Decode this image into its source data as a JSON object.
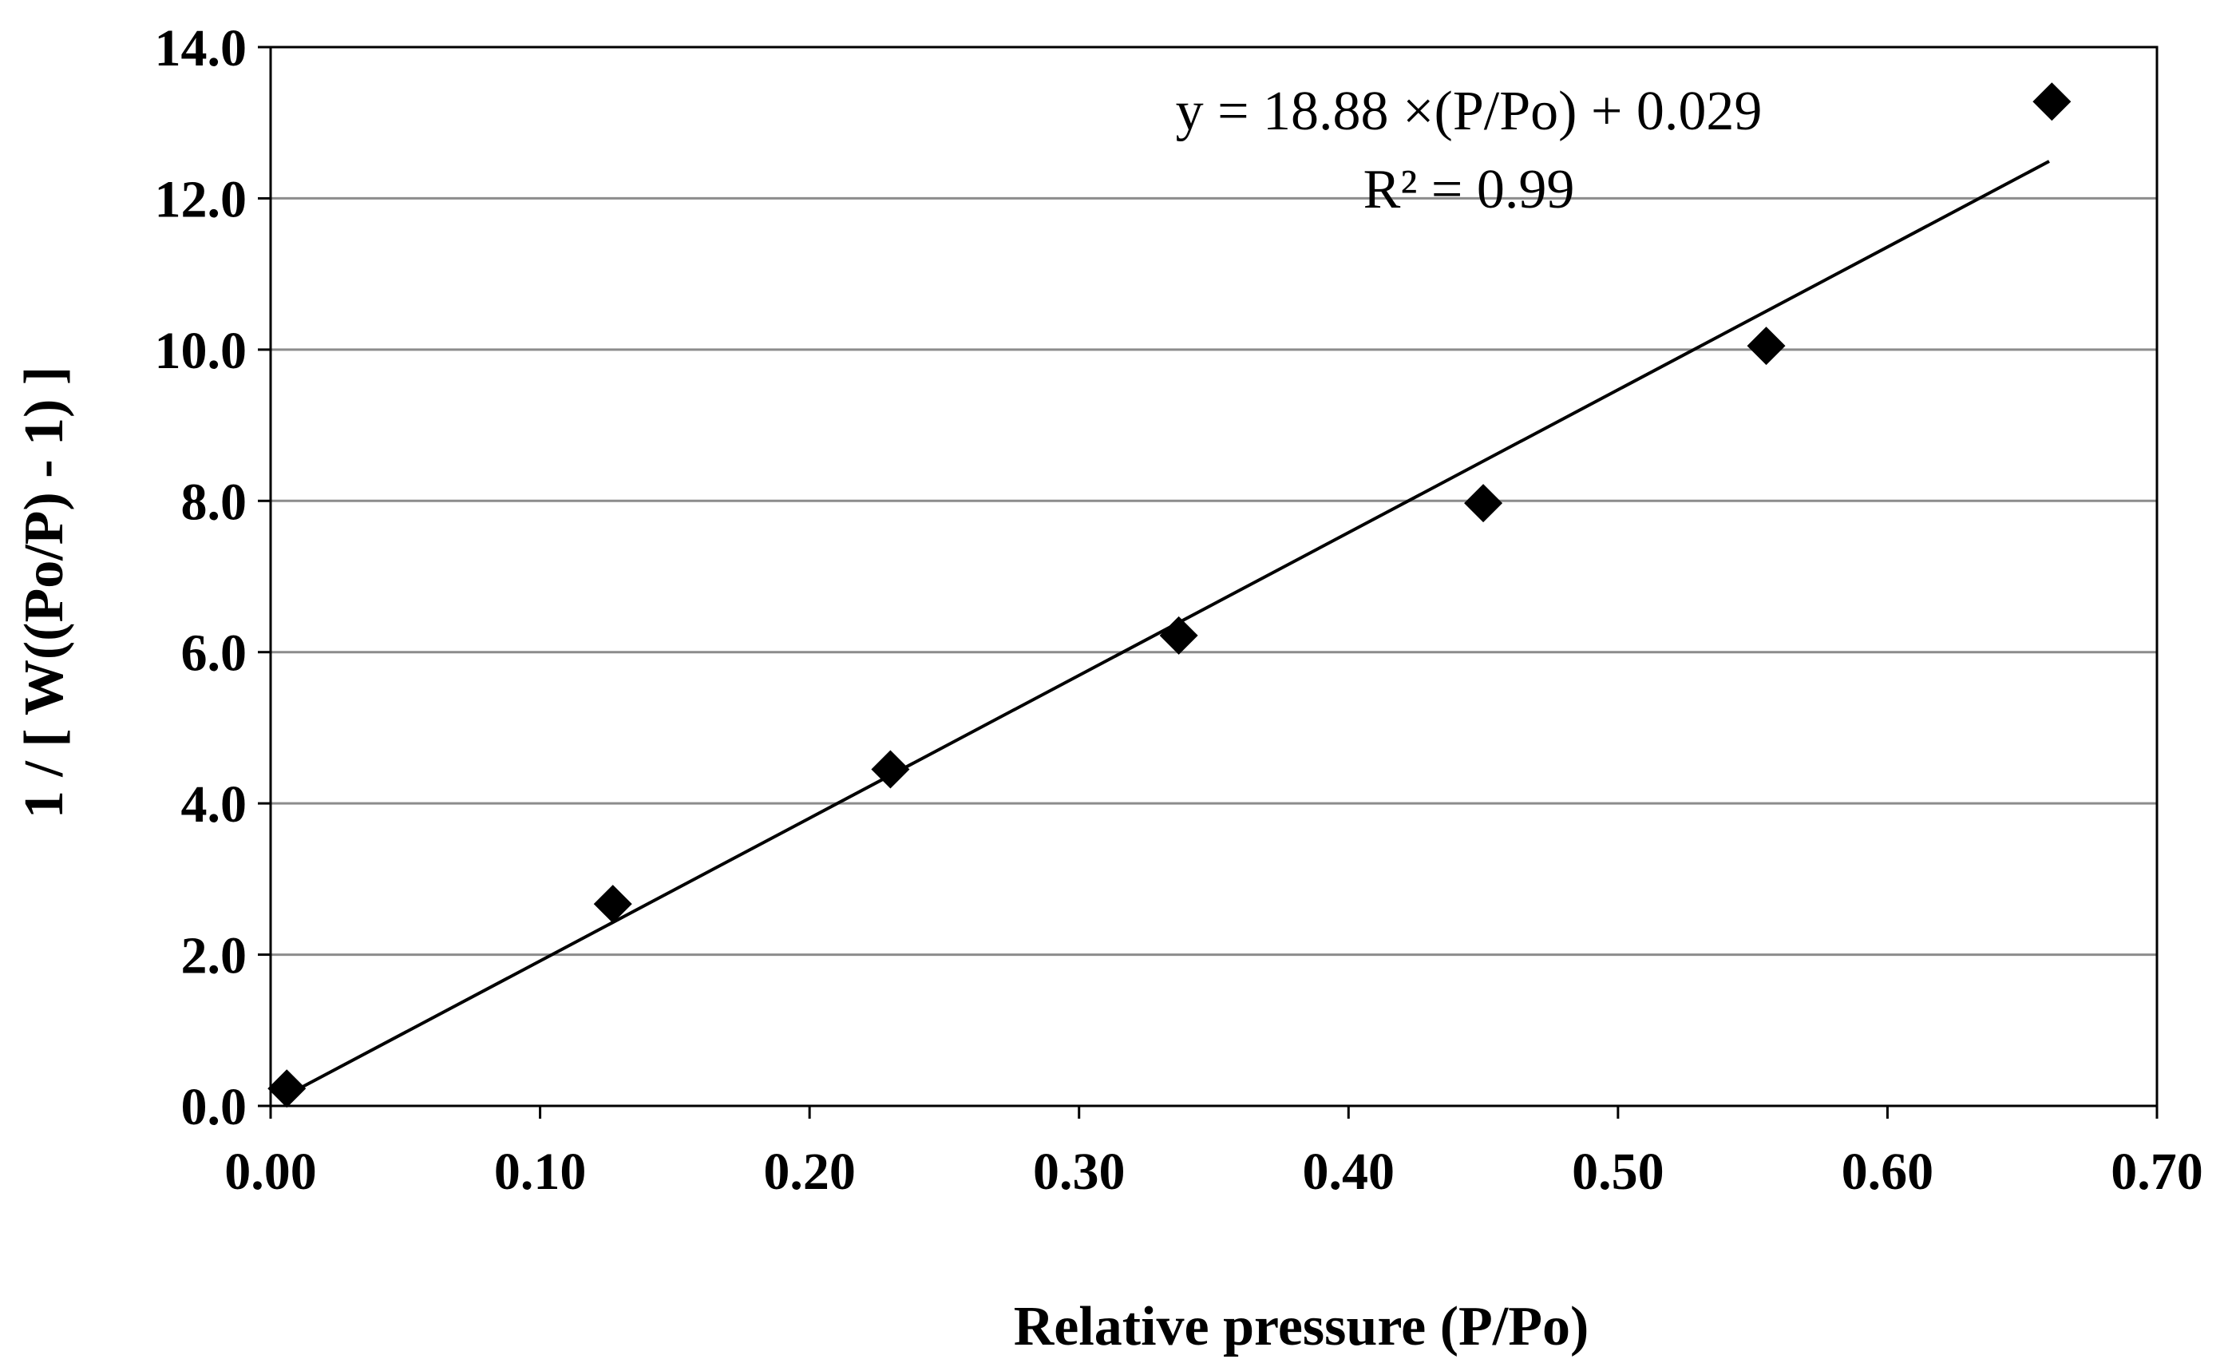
{
  "chart_data": {
    "type": "scatter",
    "title": "",
    "xlabel": "Relative pressure (P/Po)",
    "ylabel": "1 / [ W((Po/P) - 1) ]",
    "xlim": [
      0,
      0.7
    ],
    "ylim": [
      0,
      14
    ],
    "x_ticks": [
      0.0,
      0.1,
      0.2,
      0.3,
      0.4,
      0.5,
      0.6,
      0.7
    ],
    "x_tick_labels": [
      "0.00",
      "0.10",
      "0.20",
      "0.30",
      "0.40",
      "0.50",
      "0.60",
      "0.70"
    ],
    "y_ticks": [
      0,
      2,
      4,
      6,
      8,
      10,
      12,
      14
    ],
    "y_tick_labels": [
      "0.0",
      "2.0",
      "4.0",
      "6.0",
      "8.0",
      "10.0",
      "12.0",
      "14.0"
    ],
    "grid": "horizontal",
    "series": [
      {
        "name": "data",
        "marker": "diamond",
        "color": "#000000",
        "x": [
          0.006,
          0.127,
          0.23,
          0.337,
          0.45,
          0.555,
          0.661
        ],
        "y": [
          0.23,
          2.67,
          4.45,
          6.22,
          7.97,
          10.05,
          13.28
        ]
      }
    ],
    "trendline": {
      "slope": 18.88,
      "intercept": 0.029,
      "x_range": [
        0.006,
        0.66
      ],
      "color": "#000000"
    },
    "annotations": {
      "equation": "y = 18.88 ×(P/Po) + 0.029",
      "r_squared": "R² = 0.99"
    }
  }
}
